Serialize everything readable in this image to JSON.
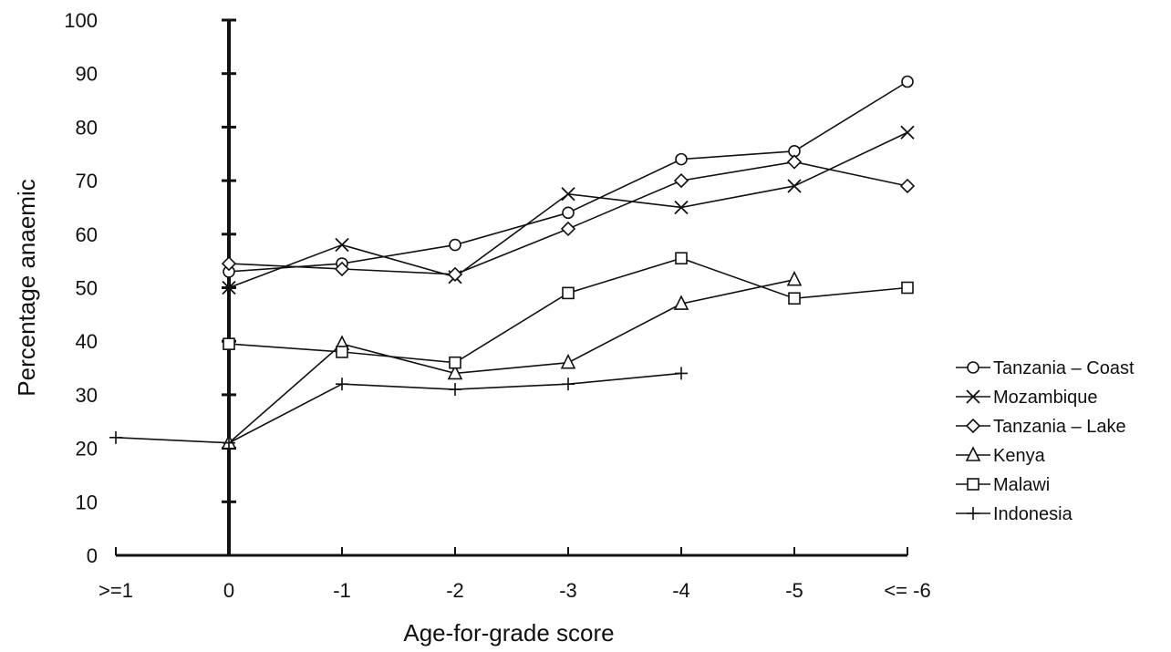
{
  "chart_data": {
    "type": "line",
    "title": "",
    "xlabel": "Age-for-grade score",
    "ylabel": "Percentage anaemic",
    "categories": [
      ">=1",
      "0",
      "-1",
      "-2",
      "-3",
      "-4",
      "-5",
      "<= -6"
    ],
    "ylim": [
      0,
      100
    ],
    "yticks": [
      "0",
      "10",
      "20",
      "30",
      "40",
      "50",
      "60",
      "70",
      "80",
      "90",
      "100"
    ],
    "grid": false,
    "legend_position": "right",
    "series": [
      {
        "name": "Tanzania – Coast",
        "marker": "circle",
        "values": [
          null,
          53,
          54.5,
          58,
          64,
          74,
          75.5,
          88.5
        ]
      },
      {
        "name": "Mozambique",
        "marker": "x",
        "values": [
          null,
          50,
          58,
          52,
          67.5,
          65,
          69,
          79
        ]
      },
      {
        "name": "Tanzania – Lake",
        "marker": "diamond",
        "values": [
          null,
          54.5,
          53.5,
          52.5,
          61,
          70,
          73.5,
          69
        ]
      },
      {
        "name": "Kenya",
        "marker": "triangle",
        "values": [
          null,
          21,
          39.5,
          34,
          36,
          47,
          51.5,
          null
        ]
      },
      {
        "name": "Malawi",
        "marker": "square",
        "values": [
          null,
          39.5,
          38,
          36,
          49,
          55.5,
          48,
          50
        ]
      },
      {
        "name": "Indonesia",
        "marker": "plus",
        "values": [
          22,
          21,
          32,
          31,
          32,
          34,
          null,
          null
        ]
      }
    ]
  }
}
